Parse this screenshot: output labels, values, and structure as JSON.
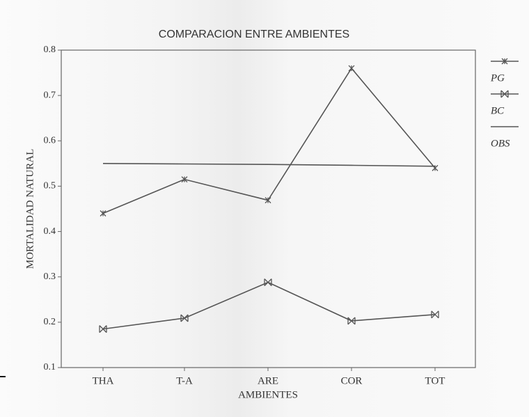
{
  "chart_data": {
    "type": "line",
    "title": "COMPARACION ENTRE AMBIENTES",
    "xlabel": "AMBIENTES",
    "ylabel": "MORTALIDAD NATURAL",
    "categories": [
      "THA",
      "T-A",
      "ARE",
      "COR",
      "TOT"
    ],
    "series": [
      {
        "name": "PG",
        "color": "#555555",
        "marker": "star",
        "values": [
          0.44,
          0.515,
          0.469,
          0.76,
          0.54
        ]
      },
      {
        "name": "BC",
        "color": "#555555",
        "marker": "bowtie",
        "values": [
          0.185,
          0.209,
          0.288,
          0.203,
          0.217
        ]
      },
      {
        "name": "OBS",
        "color": "#555555",
        "marker": "none",
        "values": [
          0.55,
          0.549,
          0.548,
          0.546,
          0.544
        ]
      }
    ],
    "ylim": [
      0.1,
      0.8
    ],
    "yticks": [
      0.1,
      0.2,
      0.3,
      0.4,
      0.5,
      0.6,
      0.7,
      0.8
    ],
    "grid": false,
    "legend": "right"
  }
}
